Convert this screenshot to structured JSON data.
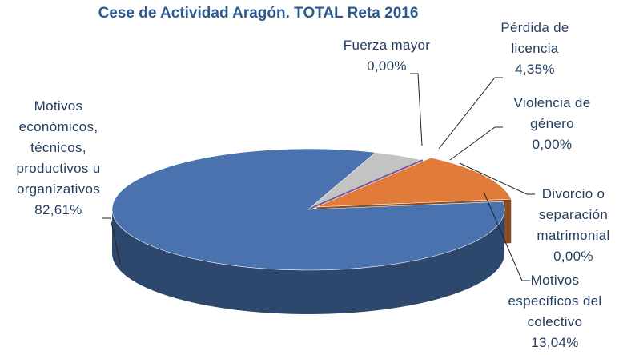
{
  "chart_data": {
    "type": "pie",
    "title": "Cese de Actividad Aragón. TOTAL Reta 2016",
    "categories": [
      "Fuerza mayor",
      "Pérdida de licencia",
      "Violencia de género",
      "Divorcio o separación matrimonial",
      "Motivos específicos del colectivo",
      "Motivos económicos, técnicos, productivos u organizativos"
    ],
    "values": [
      0,
      4.35,
      0,
      0,
      13.04,
      82.61
    ],
    "value_labels": [
      "0,00%",
      "4,35%",
      "0,00%",
      "0,00%",
      "13,04%",
      "82,61%"
    ],
    "colors": [
      "#c0392b",
      "#c3c3c3",
      "#2e7d7d",
      "#7b5a9e",
      "#e07b39",
      "#4a72ae"
    ]
  }
}
